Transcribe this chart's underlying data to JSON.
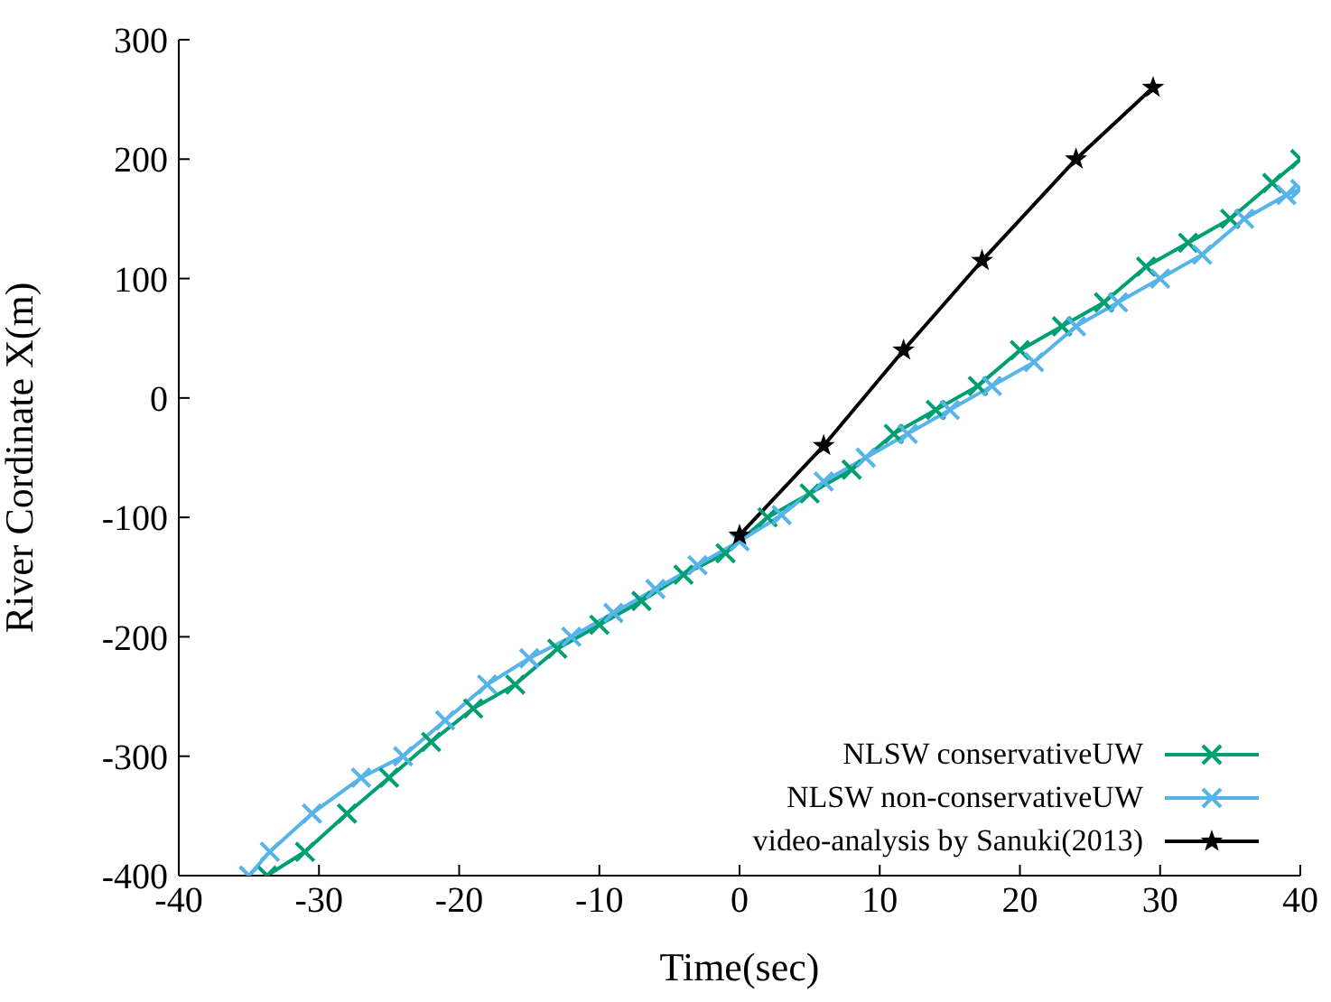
{
  "chart_data": {
    "type": "line",
    "xlabel": "Time(sec)",
    "ylabel": "River Cordinate X(m)",
    "xlim": [
      -40,
      40
    ],
    "xticks": [
      -40,
      -30,
      -20,
      -10,
      0,
      10,
      20,
      30,
      40
    ],
    "ylim": [
      -400,
      300
    ],
    "yticks": [
      -400,
      -300,
      -200,
      -100,
      0,
      100,
      200,
      300
    ],
    "grid": false,
    "legend": "bottom right",
    "series": [
      {
        "name": "NLSW conservativeUW",
        "color": "#009e73",
        "marker": "cross",
        "x": [
          -33.7,
          -31,
          -28,
          -25,
          -22,
          -19,
          -16,
          -13,
          -10,
          -7,
          -4,
          -1,
          2,
          5,
          8,
          11,
          14,
          17,
          20,
          23,
          26,
          29,
          32,
          35,
          38,
          40
        ],
        "values": [
          -400,
          -380,
          -348,
          -318,
          -288,
          -260,
          -240,
          -210,
          -190,
          -170,
          -148,
          -130,
          -100,
          -80,
          -60,
          -30,
          -10,
          10,
          40,
          60,
          80,
          110,
          130,
          150,
          180,
          200
        ]
      },
      {
        "name": "NLSW non-conservativeUW",
        "color": "#56b4e9",
        "marker": "cross",
        "x": [
          -35,
          -33.5,
          -30.5,
          -27,
          -24,
          -21,
          -18,
          -15,
          -12,
          -9,
          -6,
          -3,
          0,
          3,
          6,
          9,
          12,
          15,
          18,
          21,
          24,
          27,
          30,
          33,
          36,
          39,
          40
        ],
        "values": [
          -400,
          -380,
          -348,
          -318,
          -300,
          -270,
          -240,
          -218,
          -200,
          -180,
          -160,
          -140,
          -120,
          -98,
          -70,
          -50,
          -30,
          -10,
          10,
          30,
          60,
          80,
          100,
          120,
          150,
          170,
          175
        ]
      },
      {
        "name": "video-analysis by Sanuki(2013)",
        "color": "#000000",
        "marker": "star",
        "x": [
          0,
          6,
          11.7,
          17.3,
          24,
          29.5
        ],
        "values": [
          -115,
          -40,
          40,
          115,
          200,
          260
        ]
      }
    ]
  }
}
